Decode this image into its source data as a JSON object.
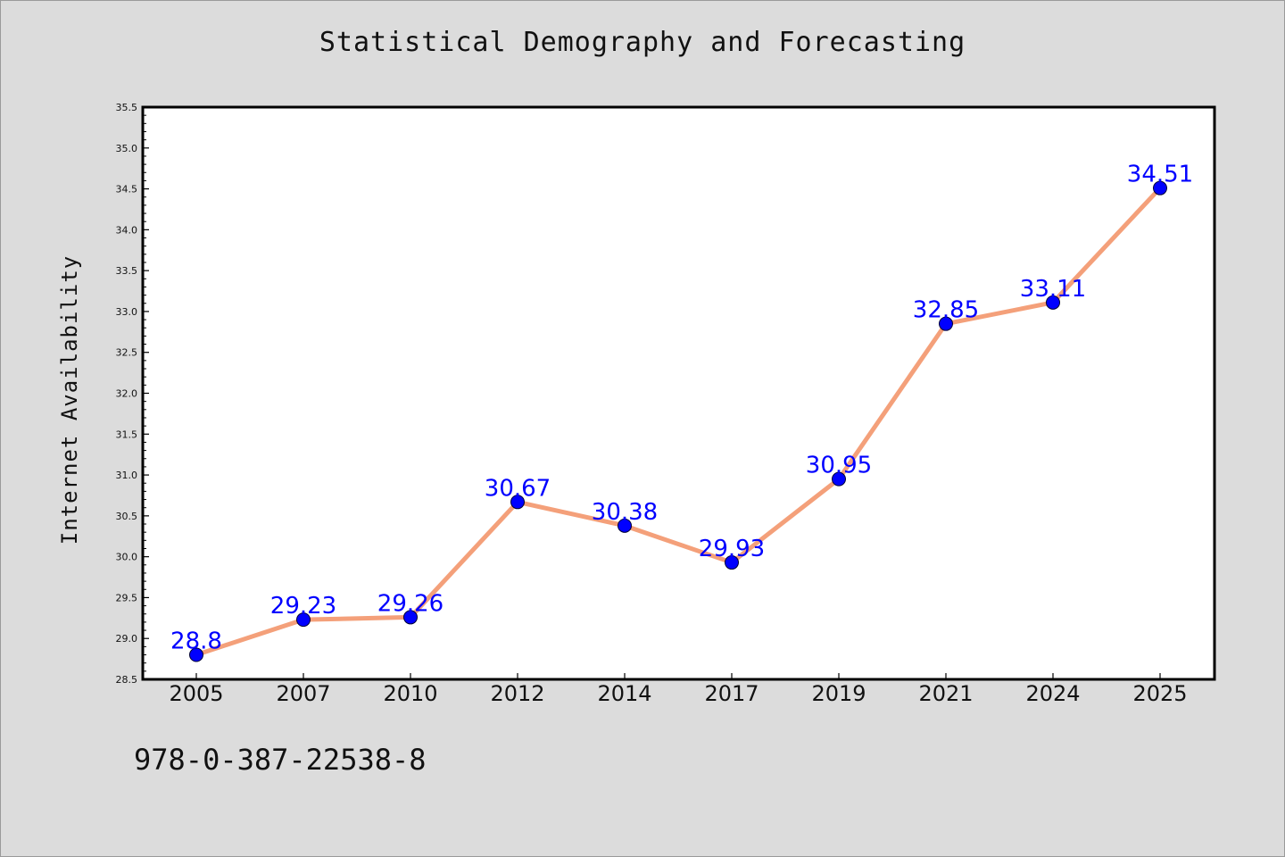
{
  "chart_data": {
    "type": "line",
    "title": "Statistical Demography and Forecasting",
    "xlabel": "",
    "ylabel": "Internet Availability",
    "categories": [
      "2005",
      "2007",
      "2010",
      "2012",
      "2014",
      "2017",
      "2019",
      "2021",
      "2024",
      "2025"
    ],
    "series": [
      {
        "values": [
          28.8,
          29.23,
          29.26,
          30.67,
          30.38,
          29.93,
          30.95,
          32.85,
          33.11,
          34.51
        ],
        "data_labels": [
          "28.8",
          "29.23",
          "29.26",
          "30.67",
          "30.38",
          "29.93",
          "30.95",
          "32.85",
          "33.11",
          "34.51"
        ],
        "line_color": "#f4a07a",
        "marker_color": "#0000ff"
      }
    ],
    "yticks": [
      "28.5",
      "29.0",
      "29.5",
      "30.0",
      "30.5",
      "31.0",
      "31.5",
      "32.0",
      "32.5",
      "33.0",
      "33.5",
      "34.0",
      "34.5",
      "35.0",
      "35.5"
    ],
    "ylim": [
      28.5,
      35.5
    ],
    "grid": false,
    "legend": "none",
    "background_color": "#dcdcdc",
    "plot_background_color": "#ffffff"
  },
  "footer": {
    "text": "978-0-387-22538-8"
  }
}
